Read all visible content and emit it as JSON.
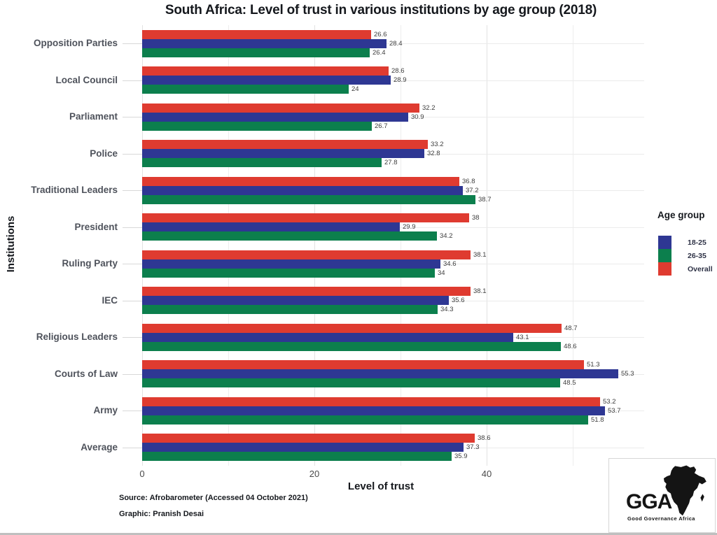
{
  "title": "South Africa: Level of trust in various institutions by age group (2018)",
  "chart_data": {
    "type": "bar",
    "orientation": "horizontal",
    "title": "South Africa: Level of trust in various institutions by age group (2018)",
    "xlabel": "Level of trust",
    "ylabel": "Institutions",
    "xlim": [
      0,
      58
    ],
    "xticks": [
      0,
      20,
      40
    ],
    "minor_gridlines": [
      10,
      30,
      50
    ],
    "grid": true,
    "categories": [
      "Opposition Parties",
      "Local Council",
      "Parliament",
      "Police",
      "Traditional Leaders",
      "President",
      "Ruling Party",
      "IEC",
      "Religious Leaders",
      "Courts of Law",
      "Army",
      "Average"
    ],
    "series": [
      {
        "name": "Overall",
        "color": "#df3b30",
        "values": [
          26.6,
          28.6,
          32.2,
          33.2,
          36.8,
          38,
          38.1,
          38.1,
          48.7,
          51.3,
          53.2,
          38.6
        ]
      },
      {
        "name": "18-25",
        "color": "#2e3793",
        "values": [
          28.4,
          28.9,
          30.9,
          32.8,
          37.2,
          29.9,
          34.6,
          35.6,
          43.1,
          55.3,
          53.7,
          37.3
        ]
      },
      {
        "name": "26-35",
        "color": "#0c7f4d",
        "values": [
          26.4,
          24,
          26.7,
          27.8,
          38.7,
          34.2,
          34,
          34.3,
          48.6,
          48.5,
          51.8,
          35.9
        ]
      }
    ],
    "legend": {
      "title": "Age group",
      "position": "right",
      "items": [
        {
          "label": "18-25",
          "color": "#2e3793"
        },
        {
          "label": "26-35",
          "color": "#0c7f4d"
        },
        {
          "label": "Overall",
          "color": "#df3b30"
        }
      ]
    }
  },
  "footer": {
    "source": "Source: Afrobarometer (Accessed 04 October 2021)",
    "credit": "Graphic: Pranish Desai"
  },
  "logo": {
    "acronym": "GGA",
    "name": "Good Governance Africa"
  }
}
